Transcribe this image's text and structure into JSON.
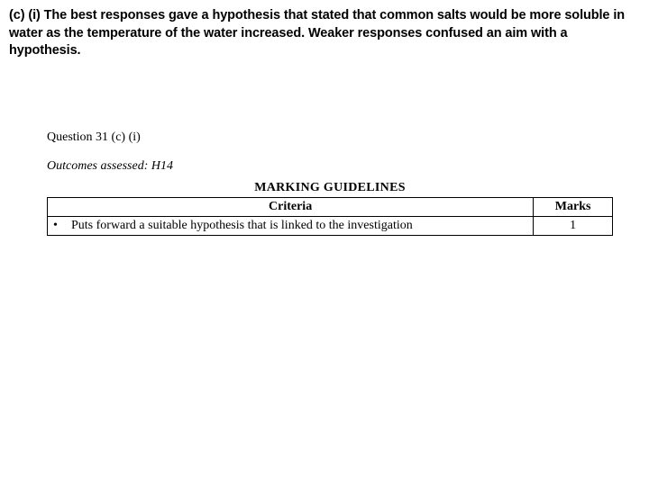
{
  "intro_text": "(c) (i) The best responses gave a hypothesis that stated that common salts would be more soluble in water as the temperature of the water increased. Weaker responses confused an aim with a hypothesis.",
  "question_label": "Question 31 (c) (i)",
  "outcomes_text": "Outcomes assessed: H14",
  "guidelines_title": "MARKING GUIDELINES",
  "table": {
    "headers": {
      "criteria": "Criteria",
      "marks": "Marks"
    },
    "rows": [
      {
        "criteria": "Puts forward a suitable hypothesis that is linked to the investigation",
        "marks": "1"
      }
    ]
  }
}
